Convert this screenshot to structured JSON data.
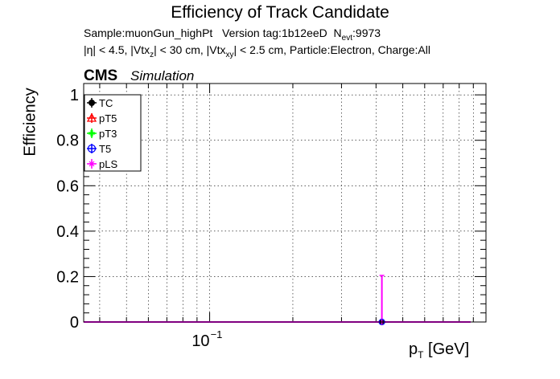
{
  "chart_data": {
    "type": "scatter",
    "title": "Efficiency of Track Candidate",
    "info_line1": {
      "sample": "Sample:muonGun_highPt",
      "version": "Version tag:1b12eeD",
      "nevt_prefix": "N",
      "nevt_sub": "evt",
      "nevt_value": ":9973"
    },
    "info_line2": {
      "eta": "|η| < 4.5,",
      "vtxz_prefix": "|Vtx",
      "vtxz_sub": "z",
      "vtxz_suffix": "| < 30 cm,",
      "vtxxy_prefix": "|Vtx",
      "vtxxy_sub": "xy",
      "vtxxy_suffix": "| < 2.5 cm, Particle:Electron, Charge:All"
    },
    "cms_label": "CMS",
    "sim_label": "Simulation",
    "ylabel": "Efficiency",
    "xlabel_main": "p",
    "xlabel_sub": "T",
    "xlabel_unit": "[GeV]",
    "x_scale": "log",
    "xlim": [
      0.035,
      1.0
    ],
    "ylim": [
      0,
      1.05
    ],
    "grid": true,
    "y_ticks": [
      "0",
      "0.2",
      "0.4",
      "0.6",
      "0.8",
      "1"
    ],
    "y_tick_values": [
      0,
      0.2,
      0.4,
      0.6,
      0.8,
      1.0
    ],
    "x_tick_label_base": "10",
    "x_tick_label_exp": "−1",
    "x_tick_value": 0.1,
    "legend_placement": "top-left",
    "series": [
      {
        "name": "TC",
        "color": "#000000",
        "marker": "filled-circle"
      },
      {
        "name": "pT5",
        "color": "#ff0000",
        "marker": "open-triangle"
      },
      {
        "name": "pT3",
        "color": "#00ff00",
        "marker": "filled-cross"
      },
      {
        "name": "T5",
        "color": "#0000ff",
        "marker": "open-circle"
      },
      {
        "name": "pLS",
        "color": "#ff00ff",
        "marker": "star"
      }
    ],
    "points": [
      {
        "x": 0.42,
        "y": 0.0,
        "yerr_up": 0.205,
        "yerr_down": 0.0
      }
    ],
    "baseline_xrange": [
      0.035,
      0.88
    ]
  }
}
